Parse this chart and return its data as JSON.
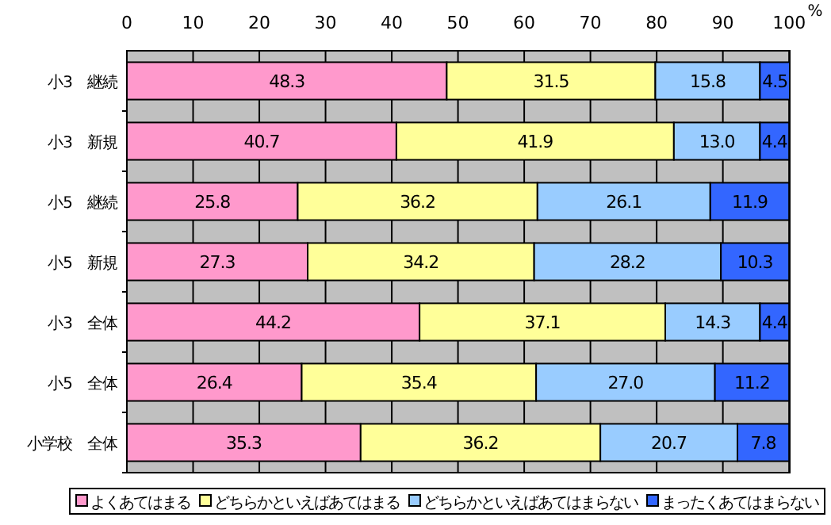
{
  "chart_data": {
    "type": "bar",
    "orientation": "horizontal",
    "stacked": true,
    "xlabel": "%",
    "categories": [
      "小3　継続",
      "小3　新規",
      "小5　継続",
      "小5　新規",
      "小3　全体",
      "小5　全体",
      "小学校　全体"
    ],
    "series": [
      {
        "name": "よくあてはまる",
        "color": "#ff99cc",
        "values": [
          48.3,
          40.7,
          25.8,
          27.3,
          44.2,
          26.4,
          35.3
        ],
        "value_labels": [
          "48.3",
          "40.7",
          "25.8",
          "27.3",
          "44.2",
          "26.4",
          "35.3"
        ]
      },
      {
        "name": "どちらかといえばあてはまる",
        "color": "#ffff99",
        "values": [
          31.5,
          41.9,
          36.2,
          34.2,
          37.1,
          35.4,
          36.2
        ],
        "value_labels": [
          "31.5",
          "41.9",
          "36.2",
          "34.2",
          "37.1",
          "35.4",
          "36.2"
        ]
      },
      {
        "name": "どちらかといえばあてはまらない",
        "color": "#99ccff",
        "values": [
          15.8,
          13.0,
          26.1,
          28.2,
          14.3,
          27.0,
          20.7
        ],
        "value_labels": [
          "15.8",
          "13.0",
          "26.1",
          "28.2",
          "14.3",
          "27.0",
          "20.7"
        ]
      },
      {
        "name": "まったくあてはまらない",
        "color": "#3366ff",
        "values": [
          4.5,
          4.4,
          11.9,
          10.3,
          4.4,
          11.2,
          7.8
        ],
        "value_labels": [
          "4.5",
          "4.4",
          "11.9",
          "10.3",
          "4.4",
          "11.2",
          "7.8"
        ]
      }
    ],
    "xlim": [
      0,
      100.1
    ],
    "xticks": [
      0,
      10,
      20,
      30,
      40,
      50,
      60,
      70,
      80,
      90,
      100
    ],
    "grid": "x",
    "legend": "bottom"
  }
}
